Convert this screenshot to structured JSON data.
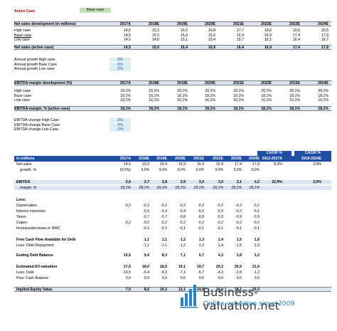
{
  "top": {
    "case_label": "Active Case",
    "case_value": "Base case",
    "years": [
      "2017A",
      "2018E",
      "2019E",
      "2020E",
      "2021E",
      "2022E",
      "2023E",
      "2024E"
    ],
    "sales_title": "Net sales development (in millions)",
    "sales_rows": [
      {
        "label": "High case",
        "values": [
          "14,5",
          "15,3",
          "16,0",
          "16,8",
          "17,7",
          "18,6",
          "19,5",
          "20,5"
        ]
      },
      {
        "label": "Base case",
        "values": [
          "14,5",
          "15,0",
          "15,4",
          "15,9",
          "16,4",
          "16,9",
          "17,4",
          "17,9"
        ]
      },
      {
        "label": "Low case",
        "values": [
          "14,5",
          "14,8",
          "15,1",
          "15,4",
          "15,7",
          "16,1",
          "16,4",
          "16,7"
        ]
      }
    ],
    "sales_active": {
      "label": "Net sales (active case)",
      "values": [
        "14,5",
        "15,0",
        "15,4",
        "15,9",
        "16,4",
        "16,9",
        "17,4",
        "17,9"
      ]
    },
    "growth_rows": [
      {
        "label": "Annual growth High case",
        "value": "5%"
      },
      {
        "label": "Annual growth Base Case",
        "value": "3%"
      },
      {
        "label": "Annual growth Low case",
        "value": "2%"
      }
    ],
    "ebitda_title": "EBITDA-margin development (%)",
    "ebitda_rows": [
      {
        "label": "High case",
        "values": [
          "18,1%",
          "20,1%",
          "20,1%",
          "20,1%",
          "20,1%",
          "20,1%",
          "20,1%",
          "20,1%"
        ]
      },
      {
        "label": "Base case",
        "values": [
          "18,1%",
          "18,1%",
          "18,1%",
          "18,1%",
          "18,1%",
          "18,1%",
          "18,1%",
          "18,1%"
        ]
      },
      {
        "label": "Low case",
        "values": [
          "18,1%",
          "16,1%",
          "16,1%",
          "16,1%",
          "16,1%",
          "16,1%",
          "16,1%",
          "16,1%"
        ]
      }
    ],
    "ebitda_active": {
      "label": "EBITDA-margin, % (active case)",
      "values": [
        "18,1%",
        "18,1%",
        "18,1%",
        "18,1%",
        "18,1%",
        "18,1%",
        "18,1%",
        "18,1%"
      ]
    },
    "ebitda_change_rows": [
      {
        "label": "EBITDA-change High Case",
        "value": "2%"
      },
      {
        "label": "EBITDA-change Base Case",
        "value": "0%"
      },
      {
        "label": "EBITDA-change Low Case",
        "value": "-2%"
      }
    ]
  },
  "bottom": {
    "cagr_label": "CAGR %",
    "cagr_cols": [
      "2013-2017A",
      "2018-2024E"
    ],
    "unit_label": "in millions",
    "years": [
      "2017A",
      "2018E",
      "2019E",
      "2020E",
      "2021E",
      "2022E",
      "2023E",
      "2024E"
    ],
    "rows": [
      {
        "label": "Net sales",
        "values": [
          "14,5",
          "15,0",
          "15,4",
          "15,9",
          "16,4",
          "16,9",
          "17,4",
          "17,9"
        ],
        "cagr": [
          "8,3%",
          "3,0%"
        ],
        "style": "plain"
      },
      {
        "label": "growth, %",
        "values": [
          "(0,5%)",
          "3,0%",
          "3,0%",
          "3,0%",
          "3,0%",
          "3,0%",
          "3,0%",
          "3,0%"
        ],
        "cagr": [
          "",
          ""
        ],
        "style": "italic-indent"
      },
      {
        "label": "EBITDA",
        "values": [
          "2,6",
          "2,7",
          "2,8",
          "2,9",
          "3,0",
          "3,0",
          "3,1",
          "3,2"
        ],
        "cagr": [
          "22,9%",
          "3,0%"
        ],
        "style": "bold-shade"
      },
      {
        "label": "margin, %",
        "values": [
          "18,1%",
          "18,1%",
          "18,1%",
          "18,1%",
          "18,1%",
          "18,1%",
          "18,1%",
          "18,1%"
        ],
        "cagr": [
          "",
          ""
        ],
        "style": "italic-indent-shade"
      },
      {
        "label": "Less:",
        "values": [
          "",
          "",
          "",
          "",
          "",
          "",
          "",
          ""
        ],
        "cagr": [
          "",
          ""
        ],
        "style": "bold"
      },
      {
        "label": "Depreciation",
        "values": [
          "-0,2",
          "-0,2",
          "-0,2",
          "-0,2",
          "-0,2",
          "-0,2",
          "-0,2",
          "-0,2"
        ],
        "cagr": [
          "",
          ""
        ],
        "style": "plain"
      },
      {
        "label": "Interest expenses",
        "values": [
          "",
          "-0,5",
          "-0,4",
          "-0,4",
          "-0,3",
          "-0,3",
          "-0,2",
          "-0,1"
        ],
        "cagr": [
          "",
          ""
        ],
        "style": "plain"
      },
      {
        "label": "Taxes",
        "values": [
          "",
          "-0,7",
          "-0,7",
          "-0,8",
          "-0,8",
          "-0,9",
          "-0,9",
          "-0,9"
        ],
        "cagr": [
          "",
          ""
        ],
        "style": "plain"
      },
      {
        "label": "Capex",
        "values": [
          "-0,2",
          "-0,2",
          "-0,2",
          "-0,2",
          "-0,2",
          "-0,2",
          "-0,2",
          "-0,2"
        ],
        "cagr": [
          "",
          ""
        ],
        "style": "plain"
      },
      {
        "label": "Increase/decrease in NWC",
        "values": [
          "",
          "-0,1",
          "-0,1",
          "-0,1",
          "-0,1",
          "-0,1",
          "-0,1",
          "-0,1"
        ],
        "cagr": [
          "",
          ""
        ],
        "style": "plain"
      },
      {
        "label": "Free Cash Flow Available for Debt",
        "values": [
          "",
          "1,1",
          "1,1",
          "1,2",
          "1,3",
          "1,4",
          "1,5",
          "1,6"
        ],
        "cagr": [
          "",
          ""
        ],
        "style": "bold"
      },
      {
        "label": "Less: Debt Repayment",
        "values": [
          "",
          "-1,1",
          "-1,1",
          "-1,2",
          "-1,3",
          "-1,4",
          "-1,5",
          "-1,6"
        ],
        "cagr": [
          "",
          ""
        ],
        "style": "plain"
      },
      {
        "label": "Ending Debt Balance",
        "values": [
          "10,5",
          "9,4",
          "8,3",
          "7,1",
          "5,7",
          "4,3",
          "2,8",
          "1,2"
        ],
        "cagr": [
          "",
          ""
        ],
        "style": "bold"
      },
      {
        "label": "Estimated EV-valuation",
        "values": [
          "17,5",
          "18,0",
          "18,6",
          "19,1",
          "19,7",
          "20,3",
          "20,9",
          "21,5"
        ],
        "cagr": [
          "",
          ""
        ],
        "style": "bold"
      },
      {
        "label": "Less: Debt",
        "values": [
          "-10,5",
          "-9,4",
          "-8,3",
          "-7,1",
          "-5,7",
          "-4,3",
          "-2,8",
          "-1,2"
        ],
        "cagr": [
          "",
          ""
        ],
        "style": "plain"
      },
      {
        "label": "Plus: Cash Balance",
        "values": [
          "0,0",
          "0,0",
          "0,0",
          "0,0",
          "0,0",
          "0,0",
          "0,0",
          "0,0"
        ],
        "cagr": [
          "",
          ""
        ],
        "style": "plain"
      },
      {
        "label": "Implied Equity Value",
        "values": [
          "7,0",
          "8,6",
          "10,3",
          "12,1",
          "14,0",
          "16,0",
          "18,1",
          "20,3"
        ],
        "cagr": [
          "",
          ""
        ],
        "style": "total"
      }
    ]
  },
  "logo": {
    "brand": "Business-valuation.net",
    "tagline": "Online valuation since 2009",
    "icon": "bar-chart-logo-icon"
  },
  "colors": {
    "accent": "#1f4ea3",
    "header_fill": "#dbe5f1",
    "input_fill": "#dbeef3",
    "highlight": "#c6e0b4",
    "red": "#c00000"
  }
}
